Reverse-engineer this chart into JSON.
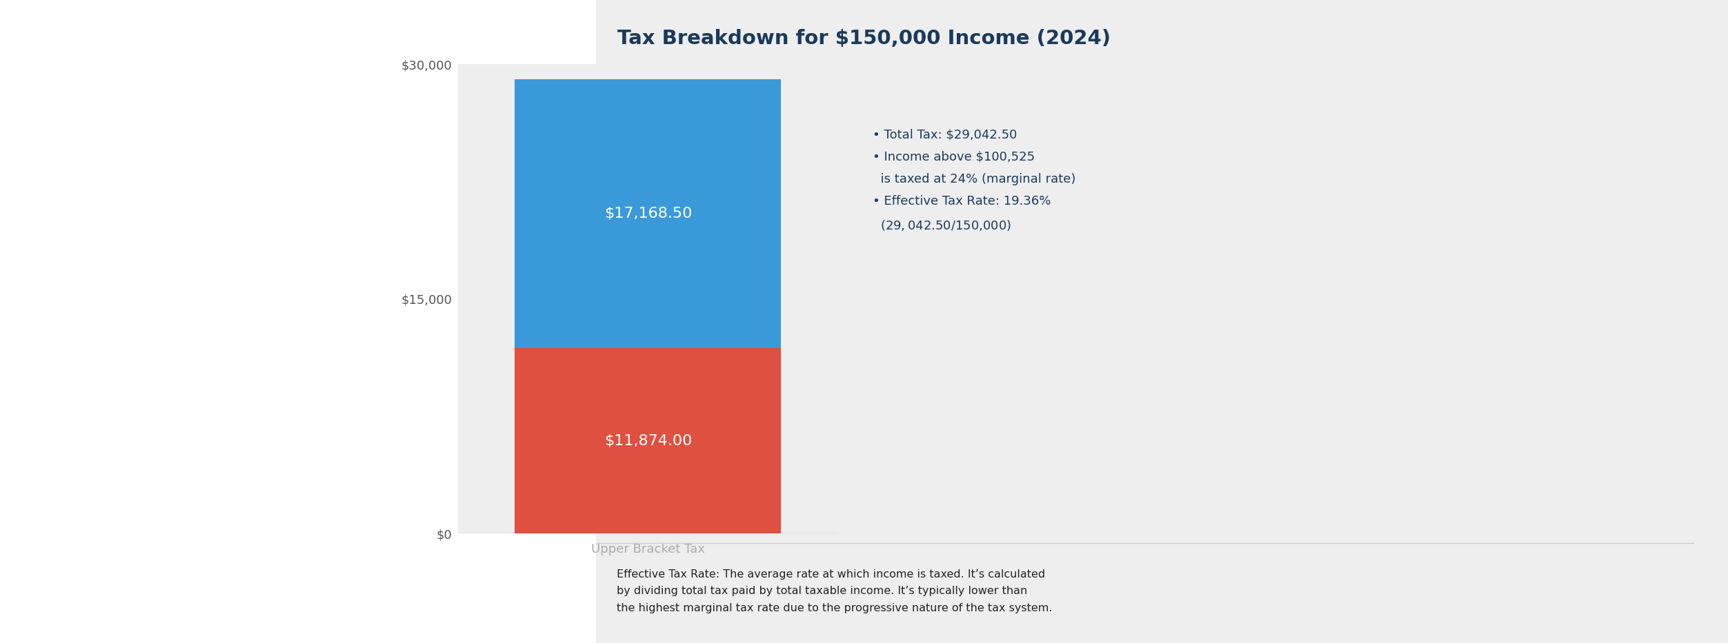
{
  "title": "Tax Breakdown for $150,000 Income (2024)",
  "title_fontsize": 21,
  "title_color": "#1a3a5c",
  "background_color": "#ffffff",
  "plot_bg_color": "#eeeeee",
  "lower_bar_value": 11874.0,
  "upper_bar_value": 17168.5,
  "lower_bar_color": "#e05040",
  "upper_bar_color": "#3a9ad9",
  "lower_bar_label": "$11,874.00",
  "upper_bar_label": "$17,168.50",
  "bar_label_color": "#ffffff",
  "bar_label_fontsize": 16,
  "ylim": [
    0,
    30000
  ],
  "yticks": [
    0,
    15000,
    30000
  ],
  "ytick_labels": [
    "$0",
    "$15,000",
    "$30,000"
  ],
  "xlabel": "Upper Bracket Tax",
  "xlabel_fontsize": 13,
  "xlabel_color": "#aaaaaa",
  "annotation_lines": [
    "• Total Tax: $29,042.50",
    "• Income above $100,525",
    "  is taxed at 24% (marginal rate)",
    "• Effective Tax Rate: 19.36%",
    "  ($29,042.50 / $150,000)"
  ],
  "annotation_fontsize": 13,
  "annotation_color": "#1a3a5c",
  "footnote_line1": "Effective Tax Rate: The average rate at which income is taxed. It’s calculated",
  "footnote_line2": "by dividing ",
  "footnote_line2b": "total",
  "footnote_line2c": " tax paid by ",
  "footnote_line2d": "total taxable income",
  "footnote_line2e": ". It’s typically lower than",
  "footnote_line3": "the highest marginal tax rate ",
  "footnote_line3b": "due",
  "footnote_line3c": " to the progressive nature of the tax system.",
  "footnote_fontsize": 11.5,
  "footnote_color": "#222222",
  "footnote_highlight_color": "#2255aa"
}
